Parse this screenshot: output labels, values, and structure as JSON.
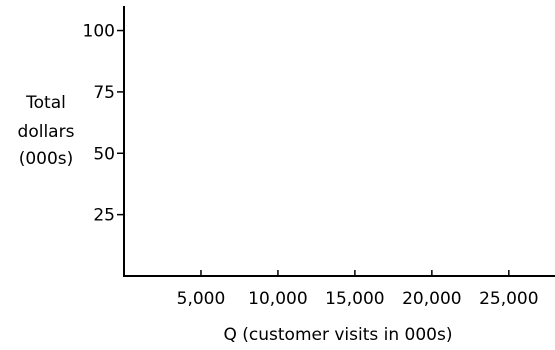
{
  "chart_data": {
    "type": "line",
    "title": "",
    "xlabel": "Q (customer visits in 000s)",
    "ylabel_lines": [
      "Total",
      "dollars",
      "(000s)"
    ],
    "x_ticks": [
      5000,
      10000,
      15000,
      20000,
      25000
    ],
    "x_tick_labels": [
      "5,000",
      "10,000",
      "15,000",
      "20,000",
      "25,000"
    ],
    "y_ticks": [
      25,
      50,
      75,
      100
    ],
    "y_tick_labels": [
      "25",
      "50",
      "75",
      "100"
    ],
    "xlim": [
      0,
      28000
    ],
    "ylim": [
      0,
      110
    ],
    "grid": false,
    "series": []
  }
}
